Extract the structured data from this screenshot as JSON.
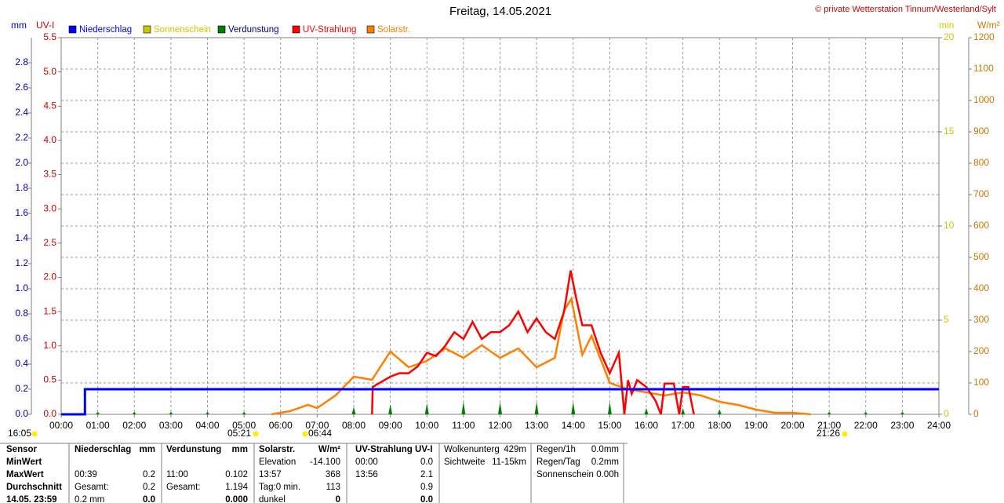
{
  "chart_data": {
    "type": "line",
    "title": "Freitag, 14.05.2021",
    "subtitle": "© private Wetterstation Tinnum/Westerland/Sylt",
    "axis_labels": {
      "y": "mm",
      "y2": "UV-I",
      "y3": "min",
      "y4": "W/m²"
    },
    "xlim": [
      0,
      24
    ],
    "xticks": [
      {
        "value": 0,
        "label": "00:00"
      },
      {
        "value": 1,
        "label": "01:00"
      },
      {
        "value": 2,
        "label": "02:00"
      },
      {
        "value": 3,
        "label": "03:00"
      },
      {
        "value": 4,
        "label": "04:00"
      },
      {
        "value": 5,
        "label": "05:00"
      },
      {
        "value": 6,
        "label": "06:00"
      },
      {
        "value": 7,
        "label": "07:00"
      },
      {
        "value": 8,
        "label": "08:00"
      },
      {
        "value": 9,
        "label": "09:00"
      },
      {
        "value": 10,
        "label": "10:00"
      },
      {
        "value": 11,
        "label": "11:00"
      },
      {
        "value": 12,
        "label": "12:00"
      },
      {
        "value": 13,
        "label": "13:00"
      },
      {
        "value": 14,
        "label": "14:00"
      },
      {
        "value": 15,
        "label": "15:00"
      },
      {
        "value": 16,
        "label": "16:00"
      },
      {
        "value": 17,
        "label": "17:00"
      },
      {
        "value": 18,
        "label": "18:00"
      },
      {
        "value": 19,
        "label": "19:00"
      },
      {
        "value": 20,
        "label": "20:00"
      },
      {
        "value": 21,
        "label": "21:00"
      },
      {
        "value": 22,
        "label": "22:00"
      },
      {
        "value": 23,
        "label": "23:00"
      },
      {
        "value": 24,
        "label": "24:00"
      }
    ],
    "ylim": [
      0,
      3
    ],
    "yticks": [
      {
        "value": 0,
        "label": "0.0"
      },
      0.2,
      0.4,
      0.6,
      0.8,
      {
        "value": 1,
        "label": "1.0"
      },
      1.2,
      1.4,
      1.6,
      1.8,
      {
        "value": 2,
        "label": "2.0"
      },
      2.2,
      2.4,
      2.6,
      2.8
    ],
    "y2lim": [
      0,
      5.5
    ],
    "y2ticks": [
      {
        "value": 0,
        "label": "0.0"
      },
      0.5,
      {
        "value": 1,
        "label": "1.0"
      },
      1.5,
      {
        "value": 2,
        "label": "2.0"
      },
      2.5,
      {
        "value": 3,
        "label": "3.0"
      },
      3.5,
      {
        "value": 4,
        "label": "4.0"
      },
      4.5,
      {
        "value": 5,
        "label": "5.0"
      },
      5.5
    ],
    "y3lim": [
      0,
      20
    ],
    "y3ticks": [
      0,
      5,
      10,
      15,
      20
    ],
    "y4lim": [
      0,
      1200
    ],
    "y4ticks": [
      0,
      100,
      200,
      300,
      400,
      500,
      600,
      700,
      800,
      900,
      1000,
      1100,
      1200
    ],
    "grid": true,
    "series": [
      {
        "name": "Niederschlag",
        "color": "#0000ff",
        "axis": "y",
        "x": [
          0,
          0.65,
          0.65,
          24
        ],
        "values": [
          0,
          0,
          0.2,
          0.2
        ]
      },
      {
        "name": "Sonnenschein",
        "color": "#c8c800",
        "axis": "y3",
        "x": [],
        "values": []
      },
      {
        "name": "Verdunstung",
        "color": "#008000",
        "axis": "y",
        "style": "spikes",
        "x": [
          1,
          2,
          3,
          4,
          5,
          8,
          9,
          10,
          11,
          12,
          13,
          14,
          15,
          16,
          17,
          18,
          21,
          22,
          23
        ],
        "values": [
          0.02,
          0.02,
          0.02,
          0.02,
          0.02,
          0.06,
          0.08,
          0.09,
          0.102,
          0.1,
          0.1,
          0.1,
          0.1,
          0.05,
          0.05,
          0.04,
          0.02,
          0.02,
          0.02
        ]
      },
      {
        "name": "UV-Strahlung",
        "color": "#ff0000",
        "axis": "y2",
        "x": [
          8.5,
          8.52,
          9,
          9.25,
          9.5,
          9.75,
          10,
          10.25,
          10.5,
          10.75,
          11,
          11.25,
          11.5,
          11.75,
          12,
          12.25,
          12.5,
          12.75,
          13,
          13.25,
          13.5,
          13.75,
          13.93,
          14.08,
          14.25,
          14.5,
          14.75,
          15,
          15.25,
          15.4,
          15.5,
          15.6,
          15.75,
          16,
          16.25,
          16.4,
          16.5,
          16.75,
          16.9,
          17,
          17.15,
          17.3
        ],
        "values": [
          0,
          0.4,
          0.55,
          0.6,
          0.6,
          0.7,
          0.9,
          0.85,
          1.0,
          1.2,
          1.1,
          1.35,
          1.1,
          1.2,
          1.2,
          1.3,
          1.5,
          1.2,
          1.4,
          1.2,
          1.1,
          1.5,
          2.1,
          1.7,
          1.3,
          1.3,
          0.9,
          0.6,
          0.9,
          0,
          0.5,
          0.3,
          0.5,
          0.4,
          0.2,
          0,
          0.45,
          0.45,
          0,
          0.4,
          0.4,
          0
        ]
      },
      {
        "name": "Solarstr.",
        "color": "#ff8000",
        "axis": "y4",
        "x": [
          5.75,
          6.25,
          6.75,
          7,
          7.5,
          8,
          8.5,
          9,
          9.5,
          10,
          10.5,
          11,
          11.5,
          12,
          12.5,
          13,
          13.5,
          13.75,
          13.95,
          14.25,
          14.5,
          15,
          15.5,
          16,
          16.5,
          17,
          17.5,
          18,
          18.5,
          19,
          19.5,
          20,
          20.5
        ],
        "values": [
          0,
          10,
          30,
          20,
          60,
          120,
          110,
          200,
          150,
          170,
          210,
          180,
          220,
          180,
          210,
          150,
          180,
          330,
          368,
          190,
          250,
          100,
          80,
          70,
          60,
          70,
          60,
          40,
          30,
          15,
          5,
          5,
          0
        ]
      }
    ],
    "annotations": [
      "16:05",
      "05:21",
      "06:44",
      "21:26"
    ]
  },
  "table": {
    "rows": [
      [
        "Sensor",
        "Niederschlag",
        "mm",
        "Verdunstung",
        "mm",
        "Solarstr.",
        "W/m²",
        "UV-Strahlung UV-I",
        null,
        "Wolkenunterg",
        "429m",
        "Regen/1h",
        "0.0mm"
      ],
      [
        "MinWert",
        null,
        null,
        null,
        null,
        "Elevation",
        "-14.100",
        "00:00",
        "0.0",
        "Sichtweite",
        "11-15km",
        "Regen/Tag",
        "0.2mm"
      ],
      [
        "MaxWert",
        "00:39",
        "0.2",
        "11:00",
        "0.102",
        "13:57",
        "368",
        "13:56",
        "2.1",
        null,
        null,
        "Sonnenschein",
        "0.00h"
      ],
      [
        "Durchschnitt",
        "Gesamt:",
        "0.2",
        "Gesamt:",
        "1.194",
        "Tag:0 min.",
        "113",
        null,
        "0.9",
        null,
        null,
        null,
        null
      ],
      [
        "14.05. 23:59",
        "0.2 mm",
        "0.0",
        null,
        "0.000",
        "dunkel",
        "0",
        null,
        "0.0",
        null,
        null,
        null,
        null
      ]
    ]
  }
}
